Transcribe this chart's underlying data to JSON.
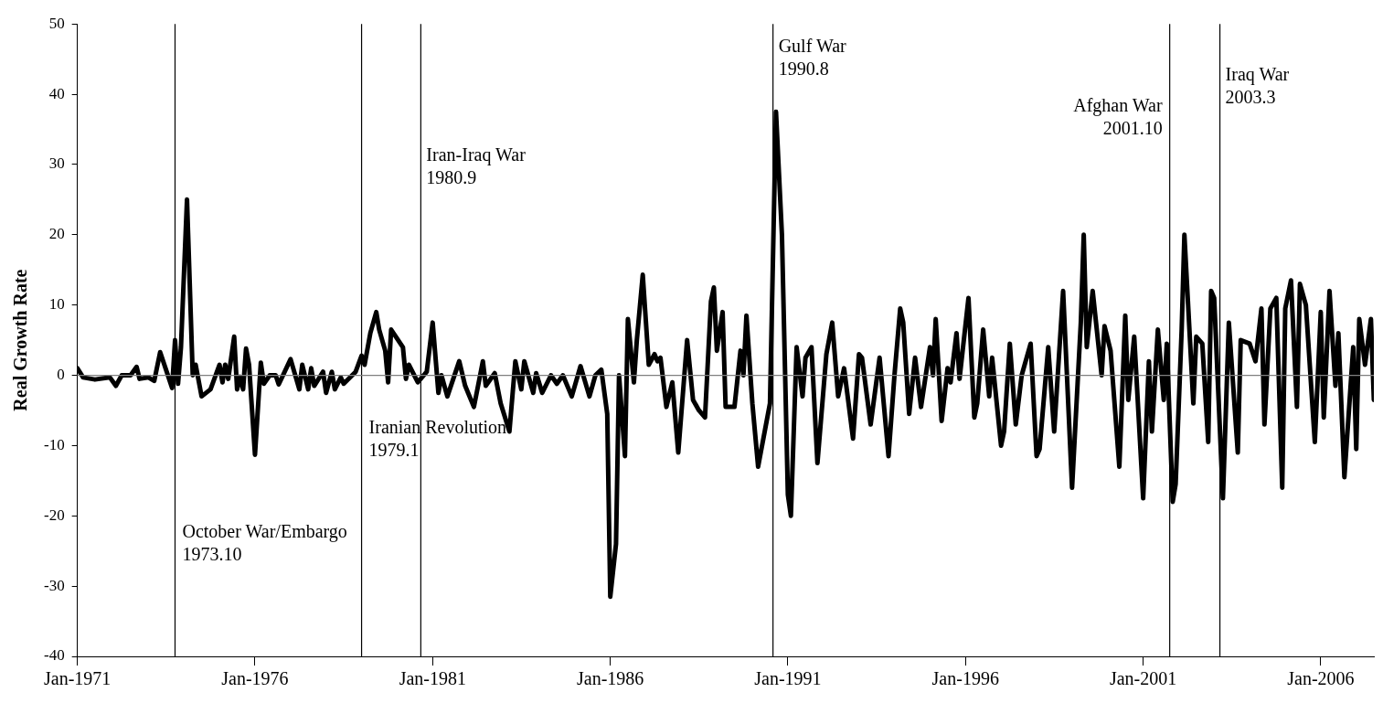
{
  "chart_data": {
    "type": "line",
    "ylabel": "Real Growth Rate",
    "x": [
      "1971-01",
      "1971-03",
      "1971-07",
      "1971-12",
      "1972-02",
      "1972-04",
      "1972-07",
      "1972-09",
      "1972-10",
      "1973-01",
      "1973-03",
      "1973-05",
      "1973-09",
      "1973-10",
      "1973-11",
      "1973-12",
      "1974-02",
      "1974-04",
      "1974-05",
      "1974-07",
      "1974-10",
      "1975-01",
      "1975-02",
      "1975-03",
      "1975-04",
      "1975-06",
      "1975-07",
      "1975-08",
      "1975-09",
      "1975-10",
      "1975-11",
      "1976-01",
      "1976-03",
      "1976-04",
      "1976-06",
      "1976-08",
      "1976-09",
      "1977-01",
      "1977-04",
      "1977-05",
      "1977-07",
      "1977-08",
      "1977-09",
      "1977-12",
      "1978-01",
      "1978-03",
      "1978-04",
      "1978-06",
      "1978-07",
      "1978-11",
      "1979-01",
      "1979-02",
      "1979-04",
      "1979-06",
      "1979-07",
      "1979-09",
      "1979-10",
      "1979-11",
      "1980-03",
      "1980-04",
      "1980-05",
      "1980-08",
      "1980-11",
      "1981-01",
      "1981-03",
      "1981-04",
      "1981-06",
      "1981-10",
      "1981-12",
      "1982-03",
      "1982-06",
      "1982-07",
      "1982-10",
      "1982-12",
      "1983-03",
      "1983-05",
      "1983-07",
      "1983-08",
      "1983-11",
      "1983-12",
      "1984-02",
      "1984-05",
      "1984-07",
      "1984-09",
      "1984-12",
      "1985-03",
      "1985-06",
      "1985-08",
      "1985-10",
      "1985-12",
      "1986-01",
      "1986-03",
      "1986-04",
      "1986-06",
      "1986-07",
      "1986-09",
      "1986-10",
      "1986-12",
      "1987-02",
      "1987-04",
      "1987-05",
      "1987-06",
      "1987-08",
      "1987-10",
      "1987-12",
      "1988-03",
      "1988-05",
      "1988-07",
      "1988-09",
      "1988-11",
      "1988-12",
      "1989-01",
      "1989-03",
      "1989-04",
      "1989-07",
      "1989-09",
      "1989-10",
      "1989-11",
      "1990-01",
      "1990-03",
      "1990-07",
      "1990-09",
      "1990-11",
      "1991-01",
      "1991-02",
      "1991-04",
      "1991-06",
      "1991-07",
      "1991-09",
      "1991-11",
      "1992-02",
      "1992-04",
      "1992-06",
      "1992-08",
      "1992-11",
      "1993-01",
      "1993-02",
      "1993-05",
      "1993-08",
      "1993-11",
      "1994-01",
      "1994-03",
      "1994-04",
      "1994-06",
      "1994-08",
      "1994-10",
      "1995-01",
      "1995-02",
      "1995-03",
      "1995-05",
      "1995-07",
      "1995-08",
      "1995-10",
      "1995-11",
      "1996-02",
      "1996-04",
      "1996-05",
      "1996-07",
      "1996-09",
      "1996-10",
      "1997-01",
      "1997-02",
      "1997-04",
      "1997-06",
      "1997-08",
      "1997-11",
      "1998-01",
      "1998-02",
      "1998-05",
      "1998-07",
      "1998-10",
      "1999-01",
      "1999-04",
      "1999-05",
      "1999-06",
      "1999-08",
      "1999-11",
      "1999-12",
      "2000-02",
      "2000-05",
      "2000-07",
      "2000-08",
      "2000-10",
      "2001-01",
      "2001-03",
      "2001-04",
      "2001-06",
      "2001-08",
      "2001-09",
      "2001-11",
      "2001-12",
      "2002-02",
      "2002-03",
      "2002-06",
      "2002-07",
      "2002-09",
      "2002-11",
      "2002-12",
      "2003-01",
      "2003-04",
      "2003-06",
      "2003-09",
      "2003-10",
      "2004-01",
      "2004-03",
      "2004-05",
      "2004-06",
      "2004-08",
      "2004-10",
      "2004-12",
      "2005-01",
      "2005-03",
      "2005-05",
      "2005-06",
      "2005-08",
      "2005-11",
      "2006-01",
      "2006-02",
      "2006-04",
      "2006-06",
      "2006-07",
      "2006-09",
      "2006-12",
      "2007-01",
      "2007-02",
      "2007-04",
      "2007-06",
      "2007-07"
    ],
    "series": [
      {
        "color": "#000000",
        "values": [
          1,
          -0.3,
          -0.6,
          -0.3,
          -1.5,
          0,
          0,
          1.2,
          -0.5,
          -0.3,
          -0.8,
          3.3,
          -1.8,
          5,
          -1.2,
          4,
          25,
          0,
          1.5,
          -3,
          -2,
          1.5,
          -1,
          1.5,
          -0.5,
          5.5,
          -2,
          -0.2,
          -2,
          3.8,
          1.5,
          -11.3,
          1.8,
          -1.2,
          0,
          0,
          -1.3,
          2.3,
          -2,
          1.5,
          -2,
          1,
          -1.5,
          0.5,
          -2.5,
          0.5,
          -2,
          -0.3,
          -1.2,
          0.5,
          2.8,
          1.5,
          6,
          9,
          6.5,
          3.5,
          -1,
          6.5,
          4,
          -0.5,
          1.5,
          -1,
          0.5,
          7.5,
          -2.5,
          0,
          -3,
          2,
          -1.5,
          -4.5,
          2,
          -1.5,
          0.3,
          -4,
          -8,
          2,
          -2,
          2,
          -2.5,
          0.3,
          -2.5,
          0,
          -1.2,
          0,
          -3,
          1.3,
          -3,
          0,
          0.8,
          -5.5,
          -31.5,
          -24,
          0,
          -11.5,
          8,
          -1,
          5,
          14.3,
          1.5,
          3,
          2,
          2.5,
          -4.5,
          -1,
          -11,
          5,
          -3.5,
          -5,
          -6,
          10.5,
          12.5,
          3.5,
          9,
          -4.5,
          -4.5,
          3.5,
          0,
          8.5,
          -4,
          -13,
          -4,
          37.5,
          20,
          -17,
          -20,
          4,
          -3,
          2.5,
          4,
          -12.5,
          3,
          7.5,
          -3,
          1,
          -9,
          3,
          2.5,
          -7,
          2.5,
          -11.5,
          0,
          9.5,
          7.5,
          -5.5,
          2.5,
          -4.5,
          4,
          0,
          8,
          -6.5,
          1,
          -1,
          6,
          -0.5,
          11,
          -6,
          -4,
          6.5,
          -3,
          2.5,
          -10,
          -8,
          4.5,
          -7,
          0,
          4.5,
          -11.5,
          -10.5,
          4,
          -8,
          12,
          -16,
          7.5,
          20,
          4,
          12,
          0,
          7,
          3.5,
          -13,
          8.5,
          -3.5,
          5.5,
          -17.5,
          2,
          -8,
          6.5,
          -3.5,
          4.5,
          -18,
          -15.5,
          6.5,
          20,
          -4,
          5.5,
          4.5,
          -9.5,
          12,
          11,
          -17.5,
          7.5,
          -11,
          5,
          4.5,
          2,
          9.5,
          -7,
          9.5,
          11,
          -16,
          9.5,
          13.5,
          -4.5,
          13,
          10,
          -9.5,
          9,
          -6,
          12,
          -1.5,
          6,
          -14.5,
          4,
          -10.5,
          8,
          1.5,
          8,
          -3.5
        ]
      }
    ],
    "xlim": [
      "1971-01",
      "2007-07"
    ],
    "xticks": [
      {
        "value": "1971-01",
        "label": "Jan-1971"
      },
      {
        "value": "1976-01",
        "label": "Jan-1976"
      },
      {
        "value": "1981-01",
        "label": "Jan-1981"
      },
      {
        "value": "1986-01",
        "label": "Jan-1986"
      },
      {
        "value": "1991-01",
        "label": "Jan-1991"
      },
      {
        "value": "1996-01",
        "label": "Jan-1996"
      },
      {
        "value": "2001-01",
        "label": "Jan-2001"
      },
      {
        "value": "2006-01",
        "label": "Jan-2006"
      }
    ],
    "ylim": [
      -40,
      50
    ],
    "yticks": [
      -40,
      -30,
      -20,
      -10,
      0,
      10,
      20,
      30,
      40,
      50
    ],
    "ref_lines": [
      {
        "axis": "x",
        "value": "1973-10",
        "label": "October War/Embargo\n1973.10",
        "color": "#000000"
      },
      {
        "axis": "x",
        "value": "1979-01",
        "label": "Iranian Revolution\n1979.1",
        "color": "#000000"
      },
      {
        "axis": "x",
        "value": "1980-09",
        "label": "Iran-Iraq War\n1980.9",
        "color": "#000000"
      },
      {
        "axis": "x",
        "value": "1990-08",
        "label": "Gulf War\n1990.8",
        "color": "#000000"
      },
      {
        "axis": "x",
        "value": "2001-10",
        "label": "Afghan War\n2001.10",
        "color": "#000000"
      },
      {
        "axis": "x",
        "value": "2003-03",
        "label": "Iraq War\n2003.3",
        "color": "#000000"
      },
      {
        "axis": "y",
        "value": 0,
        "color": "#808080"
      }
    ],
    "grid": false,
    "legend": false,
    "marker": "none",
    "line_style": "solid"
  }
}
